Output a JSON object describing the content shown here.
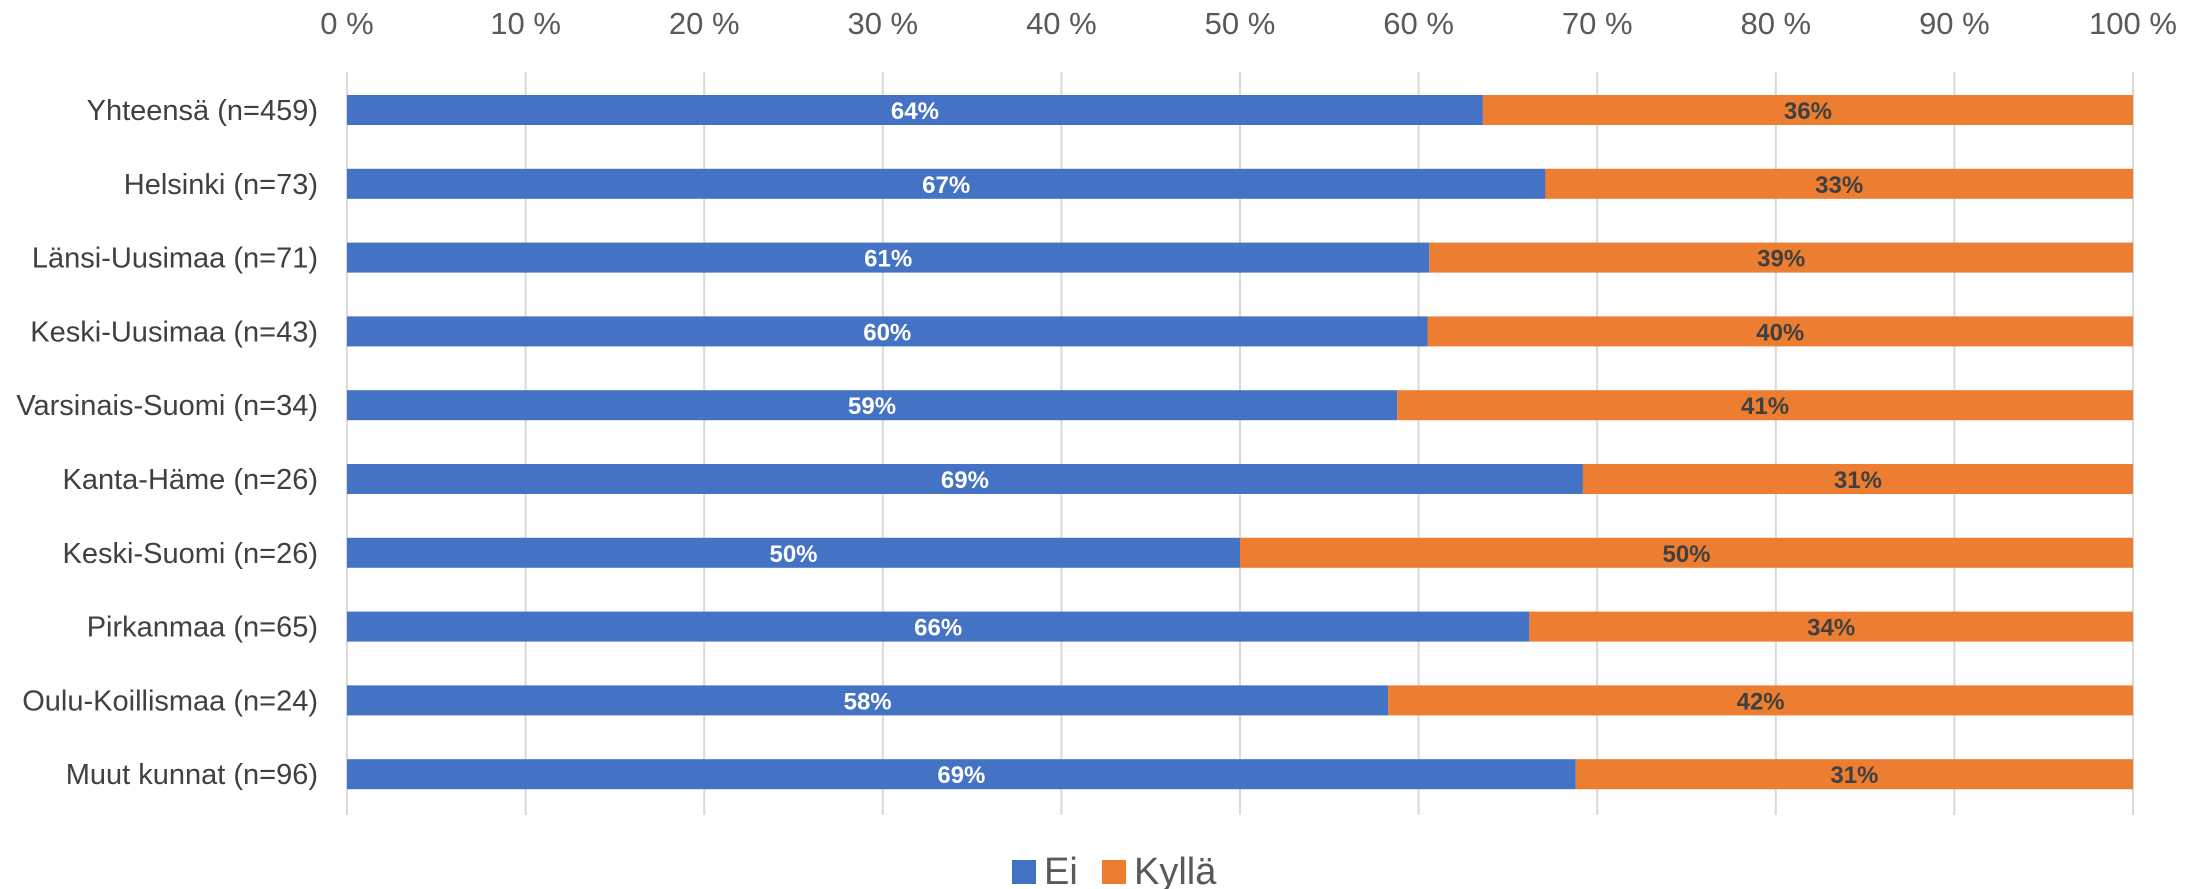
{
  "chart_data": {
    "type": "bar",
    "orientation": "horizontal",
    "stacked": "percent",
    "categories": [
      "Yhteensä (n=459)",
      "Helsinki (n=73)",
      "Länsi-Uusimaa (n=71)",
      "Keski-Uusimaa (n=43)",
      "Varsinais-Suomi (n=34)",
      "Kanta-Häme (n=26)",
      "Keski-Suomi (n=26)",
      "Pirkanmaa (n=65)",
      "Oulu-Koillismaa (n=24)",
      "Muut kunnat (n=96)"
    ],
    "series": [
      {
        "name": "Ei",
        "color": "#4472C4",
        "label_color": "#ffffff",
        "values": [
          63.6,
          67.1,
          60.6,
          60.5,
          58.8,
          69.2,
          50.0,
          66.2,
          58.3,
          68.8
        ],
        "labels": [
          "64%",
          "67%",
          "61%",
          "60%",
          "59%",
          "69%",
          "50%",
          "66%",
          "58%",
          "69%"
        ]
      },
      {
        "name": "Kyllä",
        "color": "#ED7D31",
        "label_color": "#404040",
        "values": [
          36.4,
          32.9,
          39.4,
          39.5,
          41.2,
          30.8,
          50.0,
          33.8,
          41.7,
          31.2
        ],
        "labels": [
          "36%",
          "33%",
          "39%",
          "40%",
          "41%",
          "31%",
          "50%",
          "34%",
          "42%",
          "31%"
        ]
      }
    ],
    "x_ticks": [
      "0 %",
      "10 %",
      "20 %",
      "30 %",
      "40 %",
      "50 %",
      "60 %",
      "70 %",
      "80 %",
      "90 %",
      "100 %"
    ],
    "xlim": [
      0,
      100
    ],
    "x_axis_position": "top",
    "grid": true,
    "legend": "bottom",
    "gridline_color": "#D9D9D9"
  }
}
